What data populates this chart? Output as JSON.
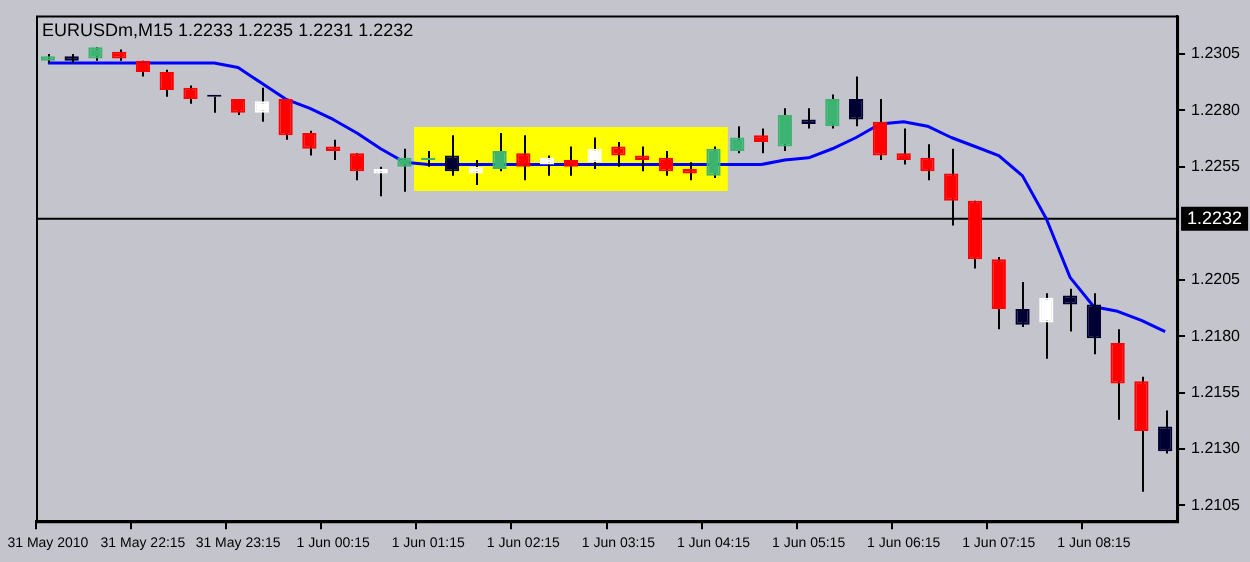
{
  "chart_data": {
    "type": "candlestick",
    "title": "EURUSDm,M15 1.2233 1.2235 1.2231 1.2232",
    "categories": [
      "31 May 2010",
      null,
      null,
      null,
      "31 May 22:15",
      null,
      null,
      null,
      "31 May 23:15",
      null,
      null,
      null,
      "1 Jun 00:15",
      null,
      null,
      null,
      "1 Jun 01:15",
      null,
      null,
      null,
      "1 Jun 02:15",
      null,
      null,
      null,
      "1 Jun 03:15",
      null,
      null,
      null,
      "1 Jun 04:15",
      null,
      null,
      null,
      "1 Jun 05:15",
      null,
      null,
      null,
      "1 Jun 06:15",
      null,
      null,
      null,
      "1 Jun 07:15",
      null,
      null,
      null,
      "1 Jun 08:15",
      null,
      null,
      null
    ],
    "ohlc": [
      [
        1.2302,
        1.2305,
        1.2301,
        1.2304
      ],
      [
        1.2304,
        1.2305,
        1.2301,
        1.2302
      ],
      [
        1.2303,
        1.2308,
        1.2302,
        1.2308
      ],
      [
        1.2306,
        1.2307,
        1.2302,
        1.2303
      ],
      [
        1.2302,
        1.2302,
        1.2295,
        1.2297
      ],
      [
        1.2297,
        1.2298,
        1.2286,
        1.2289
      ],
      [
        1.229,
        1.2291,
        1.2283,
        1.2285
      ],
      [
        1.2286,
        1.2286,
        1.2279,
        1.2286
      ],
      [
        1.2285,
        1.2285,
        1.2278,
        1.2279
      ],
      [
        1.2279,
        1.229,
        1.2275,
        1.2284
      ],
      [
        1.2285,
        1.2285,
        1.2267,
        1.2269
      ],
      [
        1.227,
        1.2271,
        1.226,
        1.2263
      ],
      [
        1.2264,
        1.2267,
        1.2258,
        1.2262
      ],
      [
        1.2261,
        1.2261,
        1.2249,
        1.2253
      ],
      [
        1.2252,
        1.2255,
        1.2242,
        1.2254
      ],
      [
        1.2255,
        1.2263,
        1.2244,
        1.2259
      ],
      [
        1.2258,
        1.2262,
        1.2255,
        1.2259
      ],
      [
        1.226,
        1.2269,
        1.2251,
        1.2253
      ],
      [
        1.2252,
        1.2258,
        1.2247,
        1.2255
      ],
      [
        1.2254,
        1.227,
        1.2253,
        1.2262
      ],
      [
        1.2261,
        1.2269,
        1.2249,
        1.2255
      ],
      [
        1.2256,
        1.226,
        1.2251,
        1.2259
      ],
      [
        1.2258,
        1.2264,
        1.2251,
        1.2255
      ],
      [
        1.2257,
        1.2268,
        1.2254,
        1.2263
      ],
      [
        1.2264,
        1.2266,
        1.2255,
        1.226
      ],
      [
        1.226,
        1.2264,
        1.2253,
        1.2258
      ],
      [
        1.2259,
        1.2262,
        1.2251,
        1.2253
      ],
      [
        1.2254,
        1.2257,
        1.2249,
        1.2252
      ],
      [
        1.2251,
        1.2264,
        1.225,
        1.2263
      ],
      [
        1.2262,
        1.2273,
        1.2261,
        1.2268
      ],
      [
        1.2269,
        1.2272,
        1.2261,
        1.2266
      ],
      [
        1.2264,
        1.2281,
        1.2262,
        1.2278
      ],
      [
        1.2276,
        1.2281,
        1.2272,
        1.2274
      ],
      [
        1.2273,
        1.2287,
        1.2272,
        1.2285
      ],
      [
        1.2285,
        1.2295,
        1.2273,
        1.2276
      ],
      [
        1.2275,
        1.2285,
        1.2258,
        1.226
      ],
      [
        1.2261,
        1.2272,
        1.2256,
        1.2258
      ],
      [
        1.2259,
        1.2265,
        1.2249,
        1.2253
      ],
      [
        1.2252,
        1.2263,
        1.2229,
        1.224
      ],
      [
        1.224,
        1.224,
        1.221,
        1.2214
      ],
      [
        1.2214,
        1.2215,
        1.2183,
        1.2192
      ],
      [
        1.2192,
        1.2204,
        1.2184,
        1.2185
      ],
      [
        1.2186,
        1.2199,
        1.217,
        1.2197
      ],
      [
        1.2198,
        1.2201,
        1.2182,
        1.2194
      ],
      [
        1.2194,
        1.2199,
        1.2172,
        1.2179
      ],
      [
        1.2177,
        1.2183,
        1.2143,
        1.2159
      ],
      [
        1.216,
        1.2162,
        1.2111,
        1.2138
      ],
      [
        1.214,
        1.2147,
        1.2128,
        1.2129
      ]
    ],
    "colors": [
      "#3cb371",
      "#000033",
      "#3cb371",
      "#ff0000",
      "#ff0000",
      "#ff0000",
      "#ff0000",
      "#000033",
      "#ff0000",
      "#ffffff",
      "#ff0000",
      "#ff0000",
      "#ff0000",
      "#ff0000",
      "#ffffff",
      "#3cb371",
      "#3cb371",
      "#000033",
      "#ffffff",
      "#3cb371",
      "#ff0000",
      "#ffffff",
      "#ff0000",
      "#ffffff",
      "#ff0000",
      "#ff0000",
      "#ff0000",
      "#ff0000",
      "#3cb371",
      "#3cb371",
      "#ff0000",
      "#3cb371",
      "#000033",
      "#3cb371",
      "#000033",
      "#ff0000",
      "#ff0000",
      "#ff0000",
      "#ff0000",
      "#ff0000",
      "#ff0000",
      "#000033",
      "#ffffff",
      "#000033",
      "#000033",
      "#ff0000",
      "#ff0000",
      "#000033"
    ],
    "series": [
      {
        "type": "line",
        "color": "#0000ff",
        "values": [
          1.2301,
          1.2301,
          1.2301,
          1.2301,
          1.2301,
          1.2301,
          1.2301,
          1.2301,
          1.2299,
          1.2292,
          1.2285,
          1.2281,
          1.2276,
          1.227,
          1.2263,
          1.2257,
          1.2256,
          1.2256,
          1.2256,
          1.2256,
          1.2256,
          1.2256,
          1.2256,
          1.2256,
          1.2256,
          1.2256,
          1.2256,
          1.2256,
          1.2256,
          1.2256,
          1.2256,
          1.2258,
          1.2259,
          1.2263,
          1.2268,
          1.2274,
          1.2275,
          1.2273,
          1.2268,
          1.2264,
          1.226,
          1.2251,
          1.2232,
          1.2206,
          1.2193,
          1.2191,
          1.2187,
          1.2182
        ]
      }
    ],
    "ylim": [
      1.2098,
      1.2322
    ],
    "yticks": [
      1.2305,
      {
        "value": 1.228,
        "label": "1.2280"
      },
      1.2255,
      1.2205,
      {
        "value": 1.218,
        "label": "1.2180"
      },
      1.2155,
      {
        "value": 1.213,
        "label": "1.2130"
      },
      1.2105
    ],
    "ref_lines": [
      {
        "axis": "y",
        "value": 1.2232,
        "label": "1.2232",
        "color": "#000000"
      }
    ],
    "bands": [
      {
        "axis": "x",
        "from": "1 Jun 01:15",
        "to": "1 Jun 04:15",
        "color": "#ffff00"
      }
    ],
    "grid": false,
    "legend": false
  }
}
